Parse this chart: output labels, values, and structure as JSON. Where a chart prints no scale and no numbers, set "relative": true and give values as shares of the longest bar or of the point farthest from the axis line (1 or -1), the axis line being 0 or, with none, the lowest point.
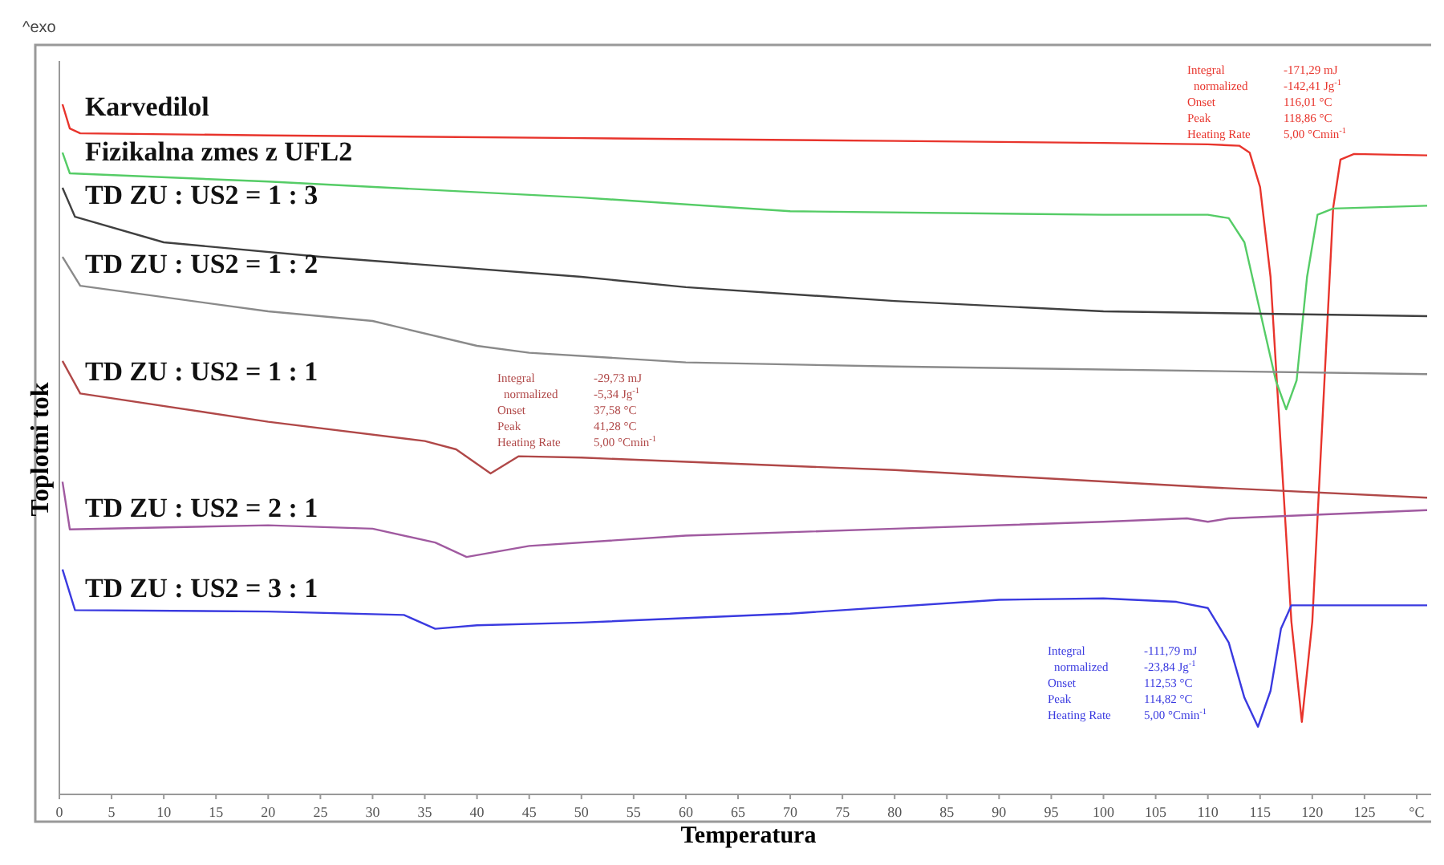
{
  "chart_data": {
    "type": "line",
    "relative": true,
    "xlabel": "Temperatura",
    "ylabel": "Toplotni tok",
    "tick_labels": "x",
    "legend": false,
    "grid": false,
    "line_style": "solid",
    "marker": "none",
    "xlim": [
      0,
      132
    ],
    "xticks": [
      0,
      5,
      10,
      15,
      20,
      25,
      30,
      35,
      40,
      45,
      50,
      55,
      60,
      65,
      70,
      75,
      80,
      85,
      90,
      95,
      100,
      105,
      110,
      115,
      120,
      125,
      {
        "value": 130,
        "label": "°C"
      }
    ],
    "series": [
      {
        "name": "Karvedilol",
        "color": "#e8342c",
        "x": [
          0.3,
          1,
          2,
          20,
          50,
          80,
          100,
          110,
          113,
          114,
          115,
          116,
          117,
          118,
          119,
          120,
          121,
          122,
          122.7,
          124,
          131
        ],
        "values": [
          1.0,
          0.965,
          0.958,
          0.955,
          0.951,
          0.947,
          0.944,
          0.942,
          0.94,
          0.93,
          0.88,
          0.75,
          0.5,
          0.25,
          0.105,
          0.25,
          0.55,
          0.85,
          0.92,
          0.928,
          0.926
        ]
      },
      {
        "name": "Fizikalna zmes z UFL2",
        "color": "#55cc66",
        "x": [
          0.3,
          1,
          20,
          50,
          70,
          100,
          110,
          112,
          113.5,
          115,
          116.5,
          117.5,
          118.5,
          119.5,
          120.5,
          122,
          131
        ],
        "values": [
          0.93,
          0.9,
          0.888,
          0.865,
          0.845,
          0.84,
          0.84,
          0.835,
          0.8,
          0.7,
          0.6,
          0.558,
          0.6,
          0.75,
          0.84,
          0.849,
          0.853
        ]
      },
      {
        "name": "TD ZU : US2 = 1 : 3",
        "color": "#404040",
        "x": [
          0.3,
          1.5,
          10,
          25,
          50,
          60,
          80,
          100,
          131
        ],
        "values": [
          0.879,
          0.837,
          0.8,
          0.779,
          0.75,
          0.735,
          0.715,
          0.7,
          0.693
        ]
      },
      {
        "name": "TD ZU : US2 = 1 : 2",
        "color": "#8a8a8a",
        "x": [
          0.3,
          2,
          20,
          30,
          40,
          45,
          60,
          80,
          131
        ],
        "values": [
          0.779,
          0.737,
          0.7,
          0.686,
          0.65,
          0.64,
          0.626,
          0.62,
          0.609
        ]
      },
      {
        "name": "TD ZU : US2 = 1 : 1",
        "color": "#b04848",
        "x": [
          0.3,
          2,
          20,
          35,
          38,
          41.3,
          44,
          50,
          80,
          110,
          131
        ],
        "values": [
          0.628,
          0.581,
          0.54,
          0.512,
          0.5,
          0.465,
          0.49,
          0.488,
          0.47,
          0.445,
          0.43
        ]
      },
      {
        "name": "TD ZU : US2 = 2 : 1",
        "color": "#a05aa0",
        "x": [
          0.3,
          1,
          20,
          30,
          36,
          39,
          45,
          60,
          80,
          100,
          108,
          110,
          112,
          131
        ],
        "values": [
          0.453,
          0.384,
          0.39,
          0.385,
          0.365,
          0.344,
          0.36,
          0.375,
          0.385,
          0.395,
          0.4,
          0.395,
          0.4,
          0.412
        ]
      },
      {
        "name": "TD ZU : US2 = 3 : 1",
        "color": "#3a3ae0",
        "x": [
          0.3,
          1.5,
          20,
          33,
          36,
          40,
          50,
          70,
          90,
          100,
          107,
          110,
          112,
          113.5,
          114.8,
          116,
          117,
          118,
          131
        ],
        "values": [
          0.326,
          0.267,
          0.265,
          0.26,
          0.24,
          0.245,
          0.249,
          0.262,
          0.282,
          0.284,
          0.279,
          0.27,
          0.22,
          0.14,
          0.098,
          0.15,
          0.24,
          0.274,
          0.274
        ]
      }
    ],
    "annotations": [
      "^exo",
      "Integral -171,29 mJ",
      "normalized -142,41 Jg$^{-1}$",
      "Onset 116,01 °C",
      "Peak 118,86 °C",
      "Heating Rate 5,00 °Cmin$^{-1}$",
      "Integral -29,73 mJ",
      "normalized -5,34 Jg$^{-1}$",
      "Onset 37,58 °C",
      "Peak 41,28 °C",
      "Heating Rate 5,00 °Cmin$^{-1}$",
      "Integral -111,79 mJ",
      "normalized -23,84 Jg$^{-1}$",
      "Onset 112,53 °C",
      "Peak 114,82 °C",
      "Heating Rate 5,00 °Cmin$^{-1}$"
    ]
  }
}
